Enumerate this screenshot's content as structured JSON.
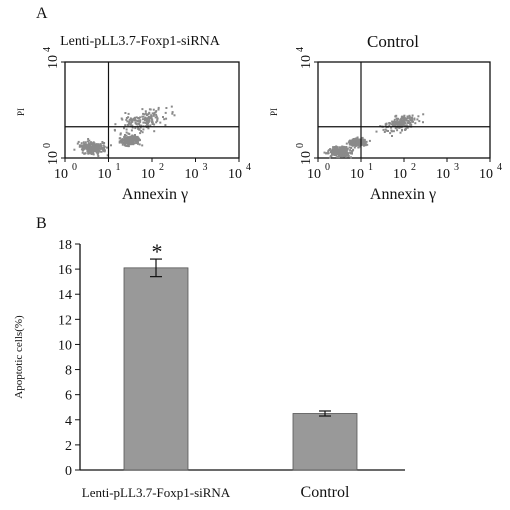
{
  "panels": {
    "a_label": "A",
    "b_label": "B"
  },
  "chart_data": [
    {
      "type": "scatter",
      "title": "Lenti-pLL3.7-Foxp1-siRNA",
      "xlabel": "Annexin γ",
      "ylabel": "PI",
      "xscale": "log",
      "yscale": "log",
      "xlim": [
        1,
        10000
      ],
      "ylim": [
        1,
        10000
      ],
      "x_ticks": [
        {
          "base": "10",
          "exp": "0"
        },
        {
          "base": "10",
          "exp": "1"
        },
        {
          "base": "10",
          "exp": "2"
        },
        {
          "base": "10",
          "exp": "3"
        },
        {
          "base": "10",
          "exp": "4"
        }
      ],
      "y_ticks": [
        {
          "base": "10",
          "exp": "0"
        },
        {
          "base": "10",
          "exp": "4"
        }
      ],
      "gates": {
        "x": 10,
        "y": 20
      },
      "clusters": [
        {
          "x": 60,
          "y": 40,
          "spread": 0.75
        },
        {
          "x": 4,
          "y": 3,
          "spread": 0.45
        },
        {
          "x": 30,
          "y": 6,
          "spread": 0.35
        }
      ],
      "point_color": "#8a8a8a"
    },
    {
      "type": "scatter",
      "title": "Control",
      "xlabel": "Annexin γ",
      "ylabel": "PI",
      "xscale": "log",
      "yscale": "log",
      "xlim": [
        1,
        10000
      ],
      "ylim": [
        1,
        10000
      ],
      "x_ticks": [
        {
          "base": "10",
          "exp": "0"
        },
        {
          "base": "10",
          "exp": "1"
        },
        {
          "base": "10",
          "exp": "2"
        },
        {
          "base": "10",
          "exp": "3"
        },
        {
          "base": "10",
          "exp": "4"
        }
      ],
      "y_ticks": [
        {
          "base": "10",
          "exp": "0"
        },
        {
          "base": "10",
          "exp": "4"
        }
      ],
      "gates": {
        "x": 10,
        "y": 20
      },
      "clusters": [
        {
          "x": 80,
          "y": 30,
          "spread": 0.6
        },
        {
          "x": 3,
          "y": 2,
          "spread": 0.4
        },
        {
          "x": 8,
          "y": 5,
          "spread": 0.3
        }
      ],
      "point_color": "#8a8a8a"
    },
    {
      "type": "bar",
      "categories": [
        "Lenti-pLL3.7-Foxp1-siRNA",
        "Control"
      ],
      "values": [
        16.1,
        4.5
      ],
      "errors": [
        0.7,
        0.2
      ],
      "significance": [
        "*",
        ""
      ],
      "ylabel": "Apoptotic cells(%)",
      "xlabel": "",
      "ylim": [
        0,
        18
      ],
      "y_ticks": [
        0,
        2,
        4,
        6,
        8,
        10,
        12,
        14,
        16,
        18
      ],
      "bar_color": "#999999",
      "grid": false
    }
  ]
}
